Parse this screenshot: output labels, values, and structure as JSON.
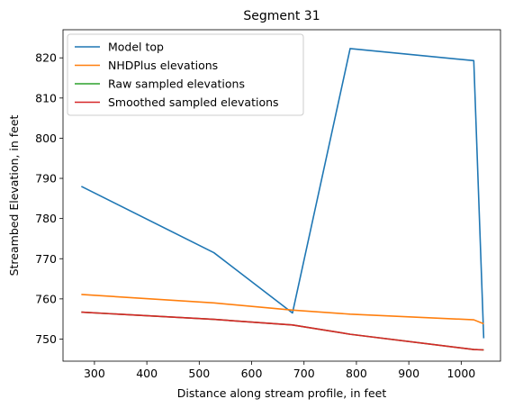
{
  "chart_data": {
    "type": "line",
    "title": "Segment 31",
    "xlabel": "Distance along stream profile, in feet",
    "ylabel": "Streambed Elevation, in feet",
    "xlim": [
      240,
      1075
    ],
    "ylim": [
      744.5,
      827
    ],
    "xticks": [
      300,
      400,
      500,
      600,
      700,
      800,
      900,
      1000
    ],
    "yticks": [
      750,
      760,
      770,
      780,
      790,
      800,
      810,
      820
    ],
    "grid": false,
    "legend_position": "top-left",
    "series": [
      {
        "name": "Model top",
        "color": "#1f77b4",
        "x": [
          275,
          528,
          678,
          788,
          1024,
          1043
        ],
        "y": [
          788.0,
          771.5,
          756.5,
          822.3,
          819.3,
          750.2
        ]
      },
      {
        "name": "NHDPlus elevations",
        "color": "#ff7f0e",
        "x": [
          275,
          528,
          678,
          788,
          1024,
          1043
        ],
        "y": [
          761.1,
          759.0,
          757.2,
          756.2,
          754.8,
          753.8
        ]
      },
      {
        "name": "Raw sampled elevations",
        "color": "#2ca02c",
        "x": [
          275,
          528,
          678,
          788,
          1024,
          1043
        ],
        "y": [
          756.7,
          754.9,
          753.5,
          751.2,
          747.4,
          747.3
        ]
      },
      {
        "name": "Smoothed sampled elevations",
        "color": "#d62728",
        "x": [
          275,
          528,
          678,
          788,
          1024,
          1043
        ],
        "y": [
          756.7,
          754.9,
          753.5,
          751.2,
          747.4,
          747.3
        ]
      }
    ]
  }
}
